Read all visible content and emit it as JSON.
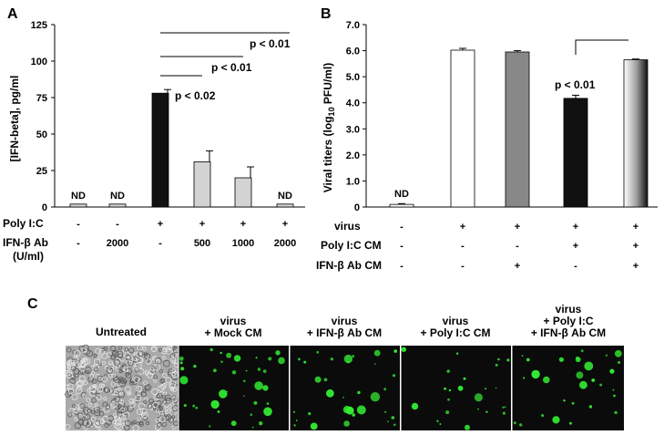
{
  "panels": {
    "a": "A",
    "b": "B",
    "c": "C"
  },
  "chart_data": [
    {
      "panel": "A",
      "type": "bar",
      "ylabel": "[IFN-beta], pg/ml",
      "ylim": [
        0,
        125
      ],
      "yticks": [
        "0",
        "25",
        "50",
        "75",
        "100",
        "125"
      ],
      "values": [
        2,
        2,
        78,
        31,
        20,
        2
      ],
      "errors": [
        0,
        0,
        2.5,
        7.5,
        7.5,
        0
      ],
      "colors": [
        "#d3d3d3",
        "#d3d3d3",
        "#111111",
        "#d3d3d3",
        "#d3d3d3",
        "#d3d3d3"
      ],
      "bar_labels": [
        "ND",
        "ND",
        "",
        "",
        "",
        "ND"
      ],
      "conditions": [
        {
          "name": "Poly I:C",
          "values": [
            "-",
            "-",
            "+",
            "+",
            "+",
            "+"
          ]
        },
        {
          "name": "IFN-β Ab",
          "values": [
            "-",
            "2000",
            "-",
            "500",
            "1000",
            "2000"
          ]
        }
      ],
      "condition_unit": "(U/ml)",
      "significance": [
        {
          "text": "p < 0.02",
          "from": 2,
          "to": 3
        },
        {
          "text": "p < 0.01",
          "from": 2,
          "to": 4
        },
        {
          "text": "p < 0.01",
          "from": 2,
          "to": 5
        }
      ],
      "grid": false
    },
    {
      "panel": "B",
      "type": "bar",
      "ylabel_main": "Viral titers (log",
      "ylabel_sub": "10",
      "ylabel_tail": " PFU/ml)",
      "ylim": [
        0,
        7
      ],
      "yticks": [
        "0",
        "1.0",
        "2.0",
        "3.0",
        "4.0",
        "5.0",
        "6.0",
        "7.0"
      ],
      "values": [
        0.1,
        6.02,
        5.95,
        4.17,
        5.65
      ],
      "errors": [
        0.03,
        0.07,
        0.05,
        0.12,
        0.03
      ],
      "colors": [
        "#ffffff",
        "#ffffff",
        "#888888",
        "#111111",
        "gradient"
      ],
      "bar_labels": [
        "ND",
        "",
        "",
        "",
        ""
      ],
      "conditions": [
        {
          "name": "virus",
          "values": [
            "-",
            "+",
            "+",
            "+",
            "+"
          ]
        },
        {
          "name": "Poly I:C CM",
          "values": [
            "-",
            "-",
            "-",
            "+",
            "+"
          ]
        },
        {
          "name": "IFN-β Ab CM",
          "values": [
            "-",
            "-",
            "+",
            "-",
            "+"
          ]
        }
      ],
      "significance": [
        {
          "text": "p < 0.01",
          "from": 3,
          "to": 4
        }
      ],
      "grid": false
    }
  ],
  "micrographs": {
    "labels": [
      {
        "lines": [
          "Untreated"
        ]
      },
      {
        "lines": [
          "virus",
          "+ Mock CM"
        ]
      },
      {
        "lines": [
          "virus",
          "+ IFN-β Ab CM"
        ]
      },
      {
        "lines": [
          "virus",
          "+ Poly I:C CM"
        ]
      },
      {
        "lines": [
          "virus",
          "+ Poly I:C",
          "+ IFN-β Ab CM"
        ]
      }
    ],
    "colors": {
      "fluorescence": "#33ee33",
      "background": "#0b0b0b",
      "brightfield": "#a9a9a9"
    }
  }
}
